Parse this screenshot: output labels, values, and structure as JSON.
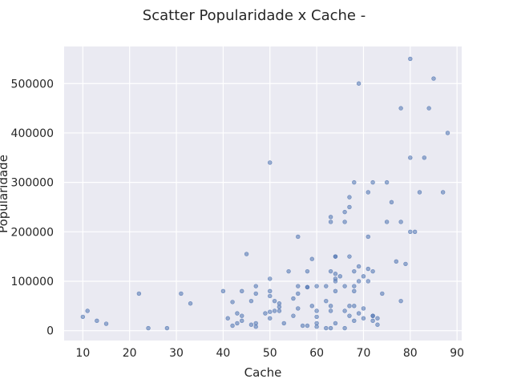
{
  "chart_data": {
    "type": "scatter",
    "title": "Scatter Popularidade x Cache -",
    "xlabel": "Cache",
    "ylabel": "Popularidade",
    "xlim": [
      6,
      91
    ],
    "ylim": [
      -20000,
      575000
    ],
    "xticks": [
      10,
      20,
      30,
      40,
      50,
      60,
      70,
      80,
      90
    ],
    "yticks": [
      0,
      100000,
      200000,
      300000,
      400000,
      500000
    ],
    "xtick_labels": [
      "10",
      "20",
      "30",
      "40",
      "50",
      "60",
      "70",
      "80",
      "90"
    ],
    "ytick_labels": [
      "0",
      "100000",
      "200000",
      "300000",
      "400000",
      "500000"
    ],
    "grid": true,
    "colors": {
      "points": "#4c72b0",
      "background": "#eaeaf2",
      "grid": "#ffffff"
    },
    "points": [
      [
        10,
        28000
      ],
      [
        11,
        40000
      ],
      [
        13,
        20000
      ],
      [
        15,
        14000
      ],
      [
        22,
        75000
      ],
      [
        24,
        5000
      ],
      [
        28,
        5000
      ],
      [
        31,
        75000
      ],
      [
        33,
        55000
      ],
      [
        40,
        80000
      ],
      [
        41,
        25000
      ],
      [
        42,
        58000
      ],
      [
        42,
        10000
      ],
      [
        43,
        35000
      ],
      [
        43,
        15000
      ],
      [
        44,
        80000
      ],
      [
        44,
        30000
      ],
      [
        44,
        20000
      ],
      [
        45,
        155000
      ],
      [
        46,
        60000
      ],
      [
        46,
        12000
      ],
      [
        47,
        90000
      ],
      [
        47,
        75000
      ],
      [
        47,
        15000
      ],
      [
        47,
        8000
      ],
      [
        49,
        35000
      ],
      [
        50,
        340000
      ],
      [
        50,
        105000
      ],
      [
        50,
        80000
      ],
      [
        50,
        70000
      ],
      [
        50,
        38000
      ],
      [
        50,
        25000
      ],
      [
        51,
        60000
      ],
      [
        51,
        40000
      ],
      [
        52,
        55000
      ],
      [
        52,
        48000
      ],
      [
        52,
        40000
      ],
      [
        53,
        15000
      ],
      [
        54,
        120000
      ],
      [
        55,
        65000
      ],
      [
        55,
        30000
      ],
      [
        56,
        190000
      ],
      [
        56,
        90000
      ],
      [
        56,
        75000
      ],
      [
        56,
        45000
      ],
      [
        57,
        10000
      ],
      [
        58,
        120000
      ],
      [
        58,
        88000
      ],
      [
        58,
        88000
      ],
      [
        58,
        10000
      ],
      [
        59,
        145000
      ],
      [
        59,
        50000
      ],
      [
        60,
        90000
      ],
      [
        60,
        40000
      ],
      [
        60,
        28000
      ],
      [
        60,
        15000
      ],
      [
        60,
        8000
      ],
      [
        62,
        90000
      ],
      [
        62,
        60000
      ],
      [
        62,
        5000
      ],
      [
        63,
        230000
      ],
      [
        63,
        220000
      ],
      [
        63,
        120000
      ],
      [
        63,
        50000
      ],
      [
        63,
        40000
      ],
      [
        63,
        5000
      ],
      [
        64,
        150000
      ],
      [
        64,
        150000
      ],
      [
        64,
        115000
      ],
      [
        64,
        105000
      ],
      [
        64,
        100000
      ],
      [
        64,
        80000
      ],
      [
        64,
        15000
      ],
      [
        65,
        110000
      ],
      [
        66,
        240000
      ],
      [
        66,
        220000
      ],
      [
        66,
        90000
      ],
      [
        66,
        40000
      ],
      [
        66,
        5000
      ],
      [
        67,
        270000
      ],
      [
        67,
        250000
      ],
      [
        67,
        150000
      ],
      [
        67,
        50000
      ],
      [
        67,
        30000
      ],
      [
        68,
        300000
      ],
      [
        68,
        120000
      ],
      [
        68,
        90000
      ],
      [
        68,
        80000
      ],
      [
        68,
        50000
      ],
      [
        68,
        20000
      ],
      [
        69,
        500000
      ],
      [
        69,
        130000
      ],
      [
        69,
        100000
      ],
      [
        69,
        35000
      ],
      [
        70,
        110000
      ],
      [
        70,
        45000
      ],
      [
        70,
        25000
      ],
      [
        71,
        280000
      ],
      [
        71,
        190000
      ],
      [
        71,
        125000
      ],
      [
        71,
        100000
      ],
      [
        72,
        300000
      ],
      [
        72,
        120000
      ],
      [
        72,
        30000
      ],
      [
        72,
        30000
      ],
      [
        72,
        20000
      ],
      [
        73,
        25000
      ],
      [
        73,
        12000
      ],
      [
        74,
        75000
      ],
      [
        75,
        300000
      ],
      [
        75,
        220000
      ],
      [
        76,
        260000
      ],
      [
        77,
        140000
      ],
      [
        78,
        450000
      ],
      [
        78,
        220000
      ],
      [
        78,
        60000
      ],
      [
        79,
        135000
      ],
      [
        80,
        550000
      ],
      [
        80,
        350000
      ],
      [
        80,
        200000
      ],
      [
        81,
        200000
      ],
      [
        82,
        280000
      ],
      [
        83,
        350000
      ],
      [
        84,
        450000
      ],
      [
        85,
        510000
      ],
      [
        87,
        280000
      ],
      [
        88,
        400000
      ]
    ]
  }
}
